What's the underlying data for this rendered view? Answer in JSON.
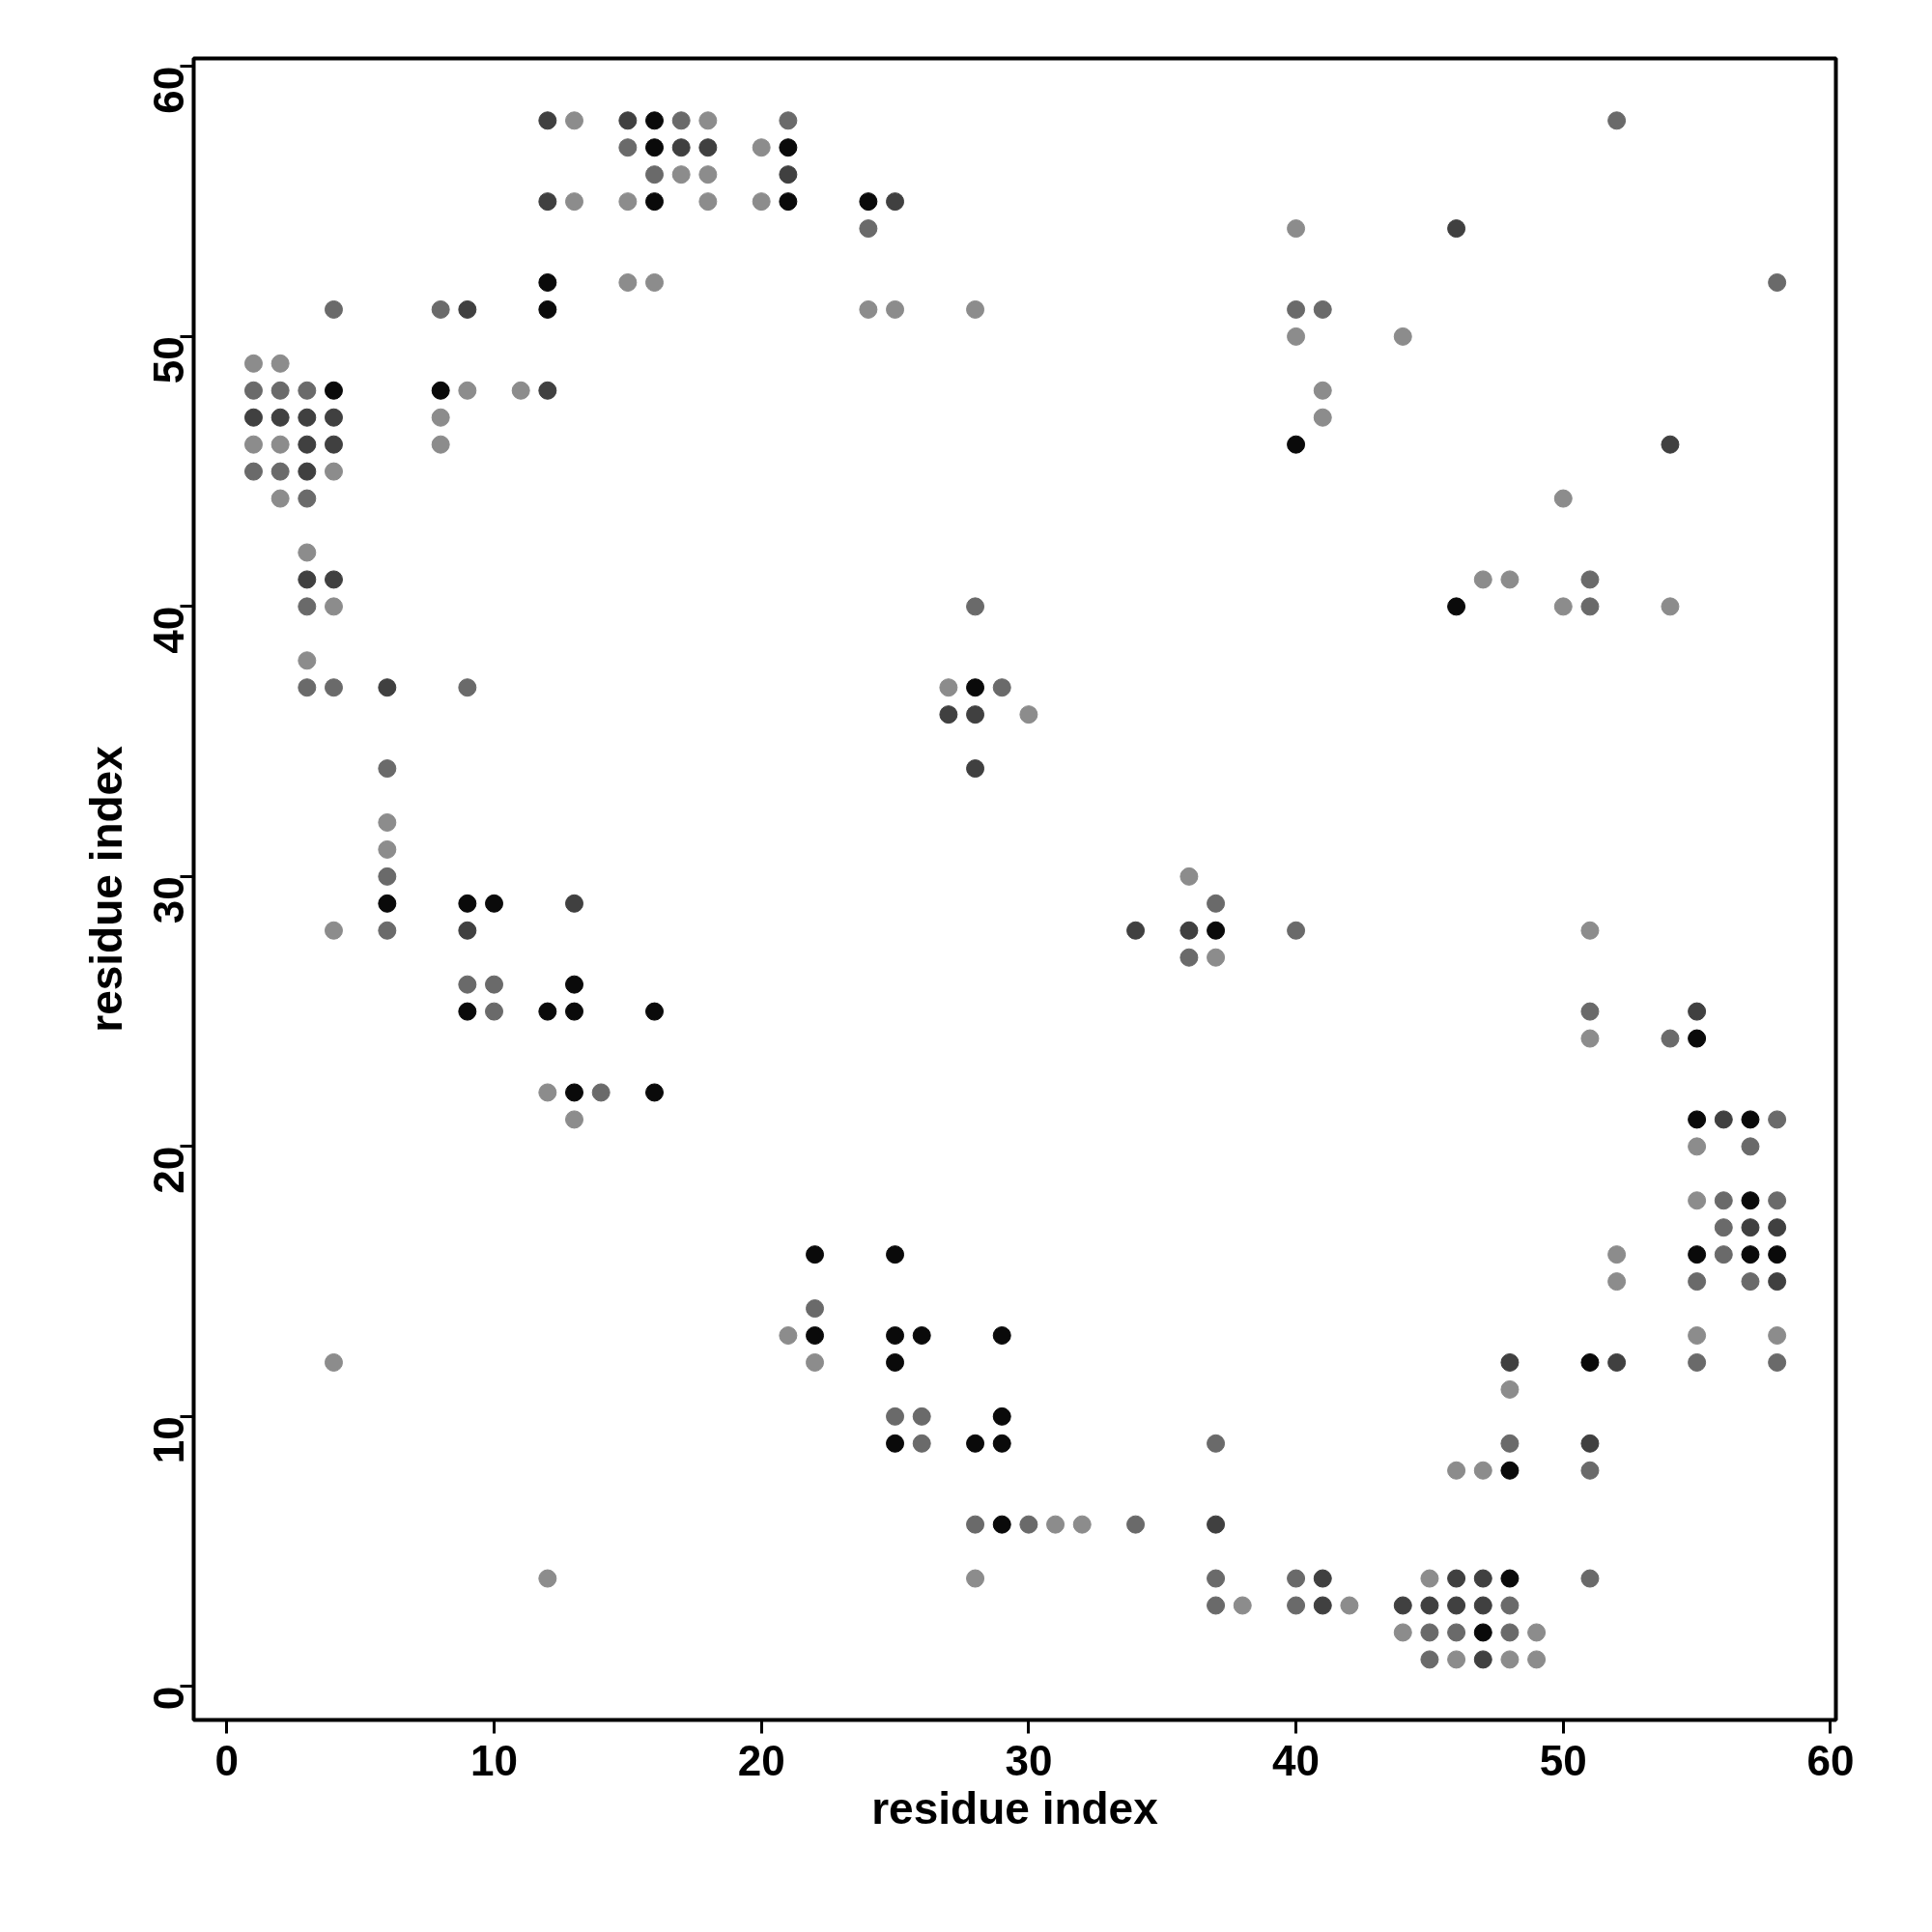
{
  "chart_data": {
    "type": "scatter",
    "xlabel": "residue index",
    "ylabel": "residue index",
    "xlim": [
      -1.24,
      60.2
    ],
    "ylim": [
      -1.24,
      60.3
    ],
    "xticks": [
      0,
      10,
      20,
      30,
      40,
      50,
      60
    ],
    "yticks": [
      0,
      10,
      20,
      30,
      40,
      50,
      60
    ],
    "grid": false,
    "marker": "circle",
    "series": [
      {
        "color": "#0a0a0a",
        "x": [
          4,
          6,
          8,
          9,
          9,
          10,
          12,
          12,
          12,
          13,
          13,
          13,
          16,
          16,
          16,
          16,
          16,
          21,
          21,
          22,
          22,
          24,
          25,
          25,
          25,
          25,
          26,
          28,
          28,
          29,
          29,
          29,
          29,
          37,
          40,
          46,
          47,
          48,
          48,
          51,
          55,
          55,
          55,
          57,
          57,
          57,
          58
        ],
        "values": [
          48,
          29,
          48,
          29,
          25,
          29,
          52,
          51,
          25,
          26,
          25,
          22,
          58,
          57,
          55,
          25,
          22,
          57,
          55,
          16,
          13,
          55,
          16,
          13,
          12,
          9,
          13,
          37,
          9,
          13,
          10,
          9,
          6,
          28,
          46,
          40,
          2,
          8,
          4,
          12,
          24,
          21,
          16,
          21,
          18,
          16,
          16
        ]
      },
      {
        "color": "#404040",
        "x": [
          1,
          2,
          3,
          3,
          3,
          3,
          4,
          4,
          4,
          6,
          9,
          9,
          12,
          12,
          12,
          13,
          15,
          17,
          18,
          21,
          25,
          27,
          28,
          28,
          34,
          36,
          37,
          41,
          41,
          44,
          45,
          46,
          46,
          46,
          47,
          47,
          47,
          48,
          51,
          52,
          54,
          55,
          56,
          57,
          58,
          58
        ],
        "values": [
          47,
          47,
          47,
          46,
          45,
          41,
          47,
          46,
          41,
          37,
          51,
          28,
          58,
          55,
          48,
          29,
          58,
          57,
          57,
          56,
          55,
          36,
          36,
          34,
          28,
          28,
          6,
          4,
          3,
          3,
          3,
          54,
          4,
          3,
          4,
          3,
          1,
          12,
          9,
          12,
          46,
          25,
          21,
          17,
          17,
          15
        ]
      },
      {
        "color": "#6a6a6a",
        "x": [
          1,
          1,
          2,
          2,
          3,
          3,
          3,
          3,
          4,
          4,
          6,
          6,
          6,
          8,
          9,
          9,
          10,
          10,
          14,
          15,
          16,
          17,
          21,
          22,
          24,
          25,
          26,
          26,
          28,
          28,
          29,
          30,
          34,
          36,
          37,
          37,
          37,
          37,
          40,
          40,
          40,
          40,
          41,
          45,
          45,
          46,
          48,
          48,
          48,
          51,
          51,
          51,
          51,
          51,
          52,
          54,
          55,
          55,
          56,
          56,
          56,
          57,
          57,
          58,
          58,
          58,
          58
        ],
        "values": [
          48,
          45,
          48,
          45,
          48,
          44,
          40,
          37,
          51,
          37,
          34,
          30,
          28,
          51,
          37,
          26,
          26,
          25,
          22,
          57,
          56,
          58,
          58,
          14,
          54,
          10,
          10,
          9,
          40,
          6,
          37,
          6,
          6,
          27,
          29,
          9,
          4,
          3,
          51,
          28,
          4,
          3,
          51,
          2,
          1,
          2,
          9,
          3,
          2,
          41,
          40,
          25,
          8,
          4,
          58,
          24,
          15,
          12,
          18,
          17,
          16,
          20,
          15,
          52,
          21,
          18,
          12
        ]
      },
      {
        "color": "#8c8c8c",
        "x": [
          1,
          1,
          2,
          2,
          2,
          3,
          3,
          4,
          4,
          4,
          4,
          6,
          6,
          8,
          8,
          9,
          11,
          12,
          12,
          13,
          13,
          13,
          15,
          15,
          16,
          17,
          18,
          18,
          18,
          20,
          20,
          21,
          22,
          24,
          25,
          27,
          28,
          28,
          30,
          31,
          32,
          36,
          37,
          38,
          40,
          40,
          41,
          41,
          42,
          44,
          44,
          45,
          46,
          46,
          47,
          47,
          48,
          48,
          48,
          49,
          49,
          50,
          50,
          51,
          51,
          52,
          52,
          54,
          55,
          55,
          55,
          58
        ],
        "values": [
          49,
          46,
          49,
          46,
          44,
          42,
          38,
          45,
          40,
          28,
          12,
          32,
          31,
          47,
          46,
          48,
          48,
          22,
          4,
          58,
          55,
          21,
          55,
          52,
          52,
          56,
          58,
          56,
          55,
          57,
          55,
          13,
          12,
          51,
          51,
          37,
          51,
          4,
          36,
          6,
          6,
          30,
          27,
          3,
          54,
          50,
          48,
          47,
          3,
          50,
          2,
          4,
          8,
          1,
          41,
          8,
          41,
          11,
          1,
          2,
          1,
          44,
          40,
          28,
          24,
          16,
          15,
          40,
          20,
          18,
          13,
          13
        ]
      }
    ]
  }
}
